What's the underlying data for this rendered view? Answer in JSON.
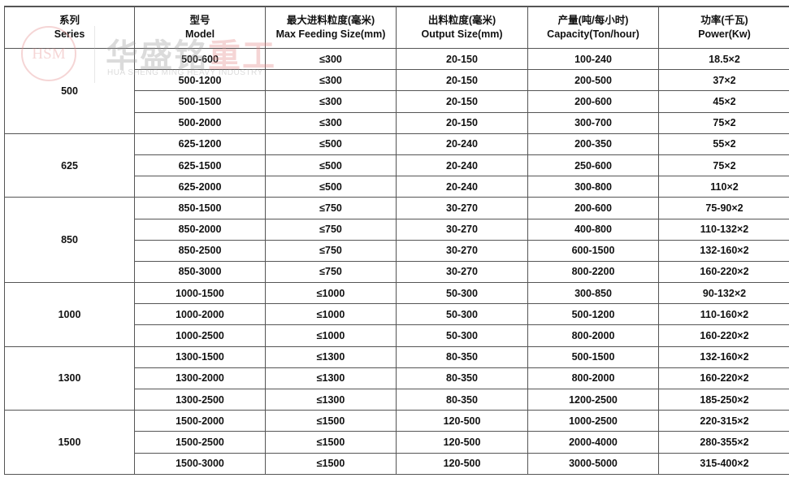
{
  "headers": [
    {
      "cn": "系列",
      "en": "Series"
    },
    {
      "cn": "型号",
      "en": "Model"
    },
    {
      "cn": "最大进料粒度(毫米)",
      "en": "Max Feeding Size(mm)"
    },
    {
      "cn": "出料粒度(毫米)",
      "en": "Output Size(mm)"
    },
    {
      "cn": "产量(吨/每小时)",
      "en": "Capacity(Ton/hour)"
    },
    {
      "cn": "功率(千瓦)",
      "en": "Power(Kw)"
    }
  ],
  "groups": [
    {
      "series": "500",
      "rows": [
        [
          "500-600",
          "≤300",
          "20-150",
          "100-240",
          "18.5×2"
        ],
        [
          "500-1200",
          "≤300",
          "20-150",
          "200-500",
          "37×2"
        ],
        [
          "500-1500",
          "≤300",
          "20-150",
          "200-600",
          "45×2"
        ],
        [
          "500-2000",
          "≤300",
          "20-150",
          "300-700",
          "75×2"
        ]
      ]
    },
    {
      "series": "625",
      "rows": [
        [
          "625-1200",
          "≤500",
          "20-240",
          "200-350",
          "55×2"
        ],
        [
          "625-1500",
          "≤500",
          "20-240",
          "250-600",
          "75×2"
        ],
        [
          "625-2000",
          "≤500",
          "20-240",
          "300-800",
          "110×2"
        ]
      ]
    },
    {
      "series": "850",
      "rows": [
        [
          "850-1500",
          "≤750",
          "30-270",
          "200-600",
          "75-90×2"
        ],
        [
          "850-2000",
          "≤750",
          "30-270",
          "400-800",
          "110-132×2"
        ],
        [
          "850-2500",
          "≤750",
          "30-270",
          "600-1500",
          "132-160×2"
        ],
        [
          "850-3000",
          "≤750",
          "30-270",
          "800-2200",
          "160-220×2"
        ]
      ]
    },
    {
      "series": "1000",
      "rows": [
        [
          "1000-1500",
          "≤1000",
          "50-300",
          "300-850",
          "90-132×2"
        ],
        [
          "1000-2000",
          "≤1000",
          "50-300",
          "500-1200",
          "110-160×2"
        ],
        [
          "1000-2500",
          "≤1000",
          "50-300",
          "800-2000",
          "160-220×2"
        ]
      ]
    },
    {
      "series": "1300",
      "rows": [
        [
          "1300-1500",
          "≤1300",
          "80-350",
          "500-1500",
          "132-160×2"
        ],
        [
          "1300-2000",
          "≤1300",
          "80-350",
          "800-2000",
          "160-220×2"
        ],
        [
          "1300-2500",
          "≤1300",
          "80-350",
          "1200-2500",
          "185-250×2"
        ]
      ]
    },
    {
      "series": "1500",
      "rows": [
        [
          "1500-2000",
          "≤1500",
          "120-500",
          "1000-2500",
          "220-315×2"
        ],
        [
          "1500-2500",
          "≤1500",
          "120-500",
          "2000-4000",
          "280-355×2"
        ],
        [
          "1500-3000",
          "≤1500",
          "120-500",
          "3000-5000",
          "315-400×2"
        ]
      ]
    }
  ],
  "watermark": {
    "logo": "HSM",
    "cn_gray": "华盛铭",
    "cn_red": "重工",
    "en": "HUA SHENG MING HEAVY INDUSTRY"
  }
}
